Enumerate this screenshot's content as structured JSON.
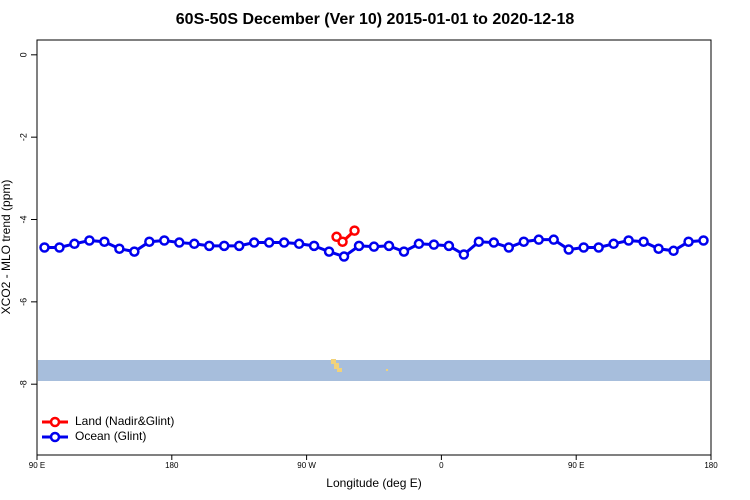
{
  "chart_data": {
    "type": "line",
    "title": "60S-50S December (Ver 10)   2015-01-01 to 2020-12-18",
    "x_label": "Longitude (deg E)",
    "y_label": "XCO2 - MLO trend (ppm)",
    "xlim": [
      90,
      540
    ],
    "xticks": [
      {
        "value": 90,
        "label": "90 E"
      },
      {
        "value": 180,
        "label": "180"
      },
      {
        "value": 270,
        "label": "90 W"
      },
      {
        "value": 360,
        "label": "0"
      },
      {
        "value": 450,
        "label": "90 E"
      },
      {
        "value": 540,
        "label": "180"
      }
    ],
    "ylim": [
      -9.72,
      0.36
    ],
    "yticks": [
      0,
      -2,
      -4,
      -6,
      -8
    ],
    "legend": "bottom-left",
    "series": [
      {
        "name": "Land (Nadir&Glint)",
        "color": "#ff0000",
        "x": [
          290,
          294,
          302
        ],
        "values": [
          -4.42,
          -4.54,
          -4.27
        ]
      },
      {
        "name": "Ocean (Glint)",
        "color": "#0000ee",
        "x": [
          95,
          105,
          115,
          125,
          135,
          145,
          155,
          165,
          175,
          185,
          195,
          205,
          215,
          225,
          235,
          245,
          255,
          265,
          275,
          285,
          295,
          305,
          315,
          325,
          335,
          345,
          355,
          365,
          375,
          385,
          395,
          405,
          415,
          425,
          435,
          445,
          455,
          465,
          475,
          485,
          495,
          505,
          515,
          525,
          535
        ],
        "values": [
          -4.68,
          -4.68,
          -4.59,
          -4.51,
          -4.54,
          -4.71,
          -4.78,
          -4.54,
          -4.51,
          -4.56,
          -4.59,
          -4.64,
          -4.64,
          -4.64,
          -4.56,
          -4.56,
          -4.56,
          -4.59,
          -4.64,
          -4.78,
          -4.9,
          -4.64,
          -4.66,
          -4.64,
          -4.78,
          -4.59,
          -4.61,
          -4.64,
          -4.85,
          -4.54,
          -4.56,
          -4.68,
          -4.54,
          -4.49,
          -4.49,
          -4.73,
          -4.68,
          -4.68,
          -4.59,
          -4.51,
          -4.54,
          -4.71,
          -4.76,
          -4.54,
          -4.51
        ]
      }
    ]
  }
}
